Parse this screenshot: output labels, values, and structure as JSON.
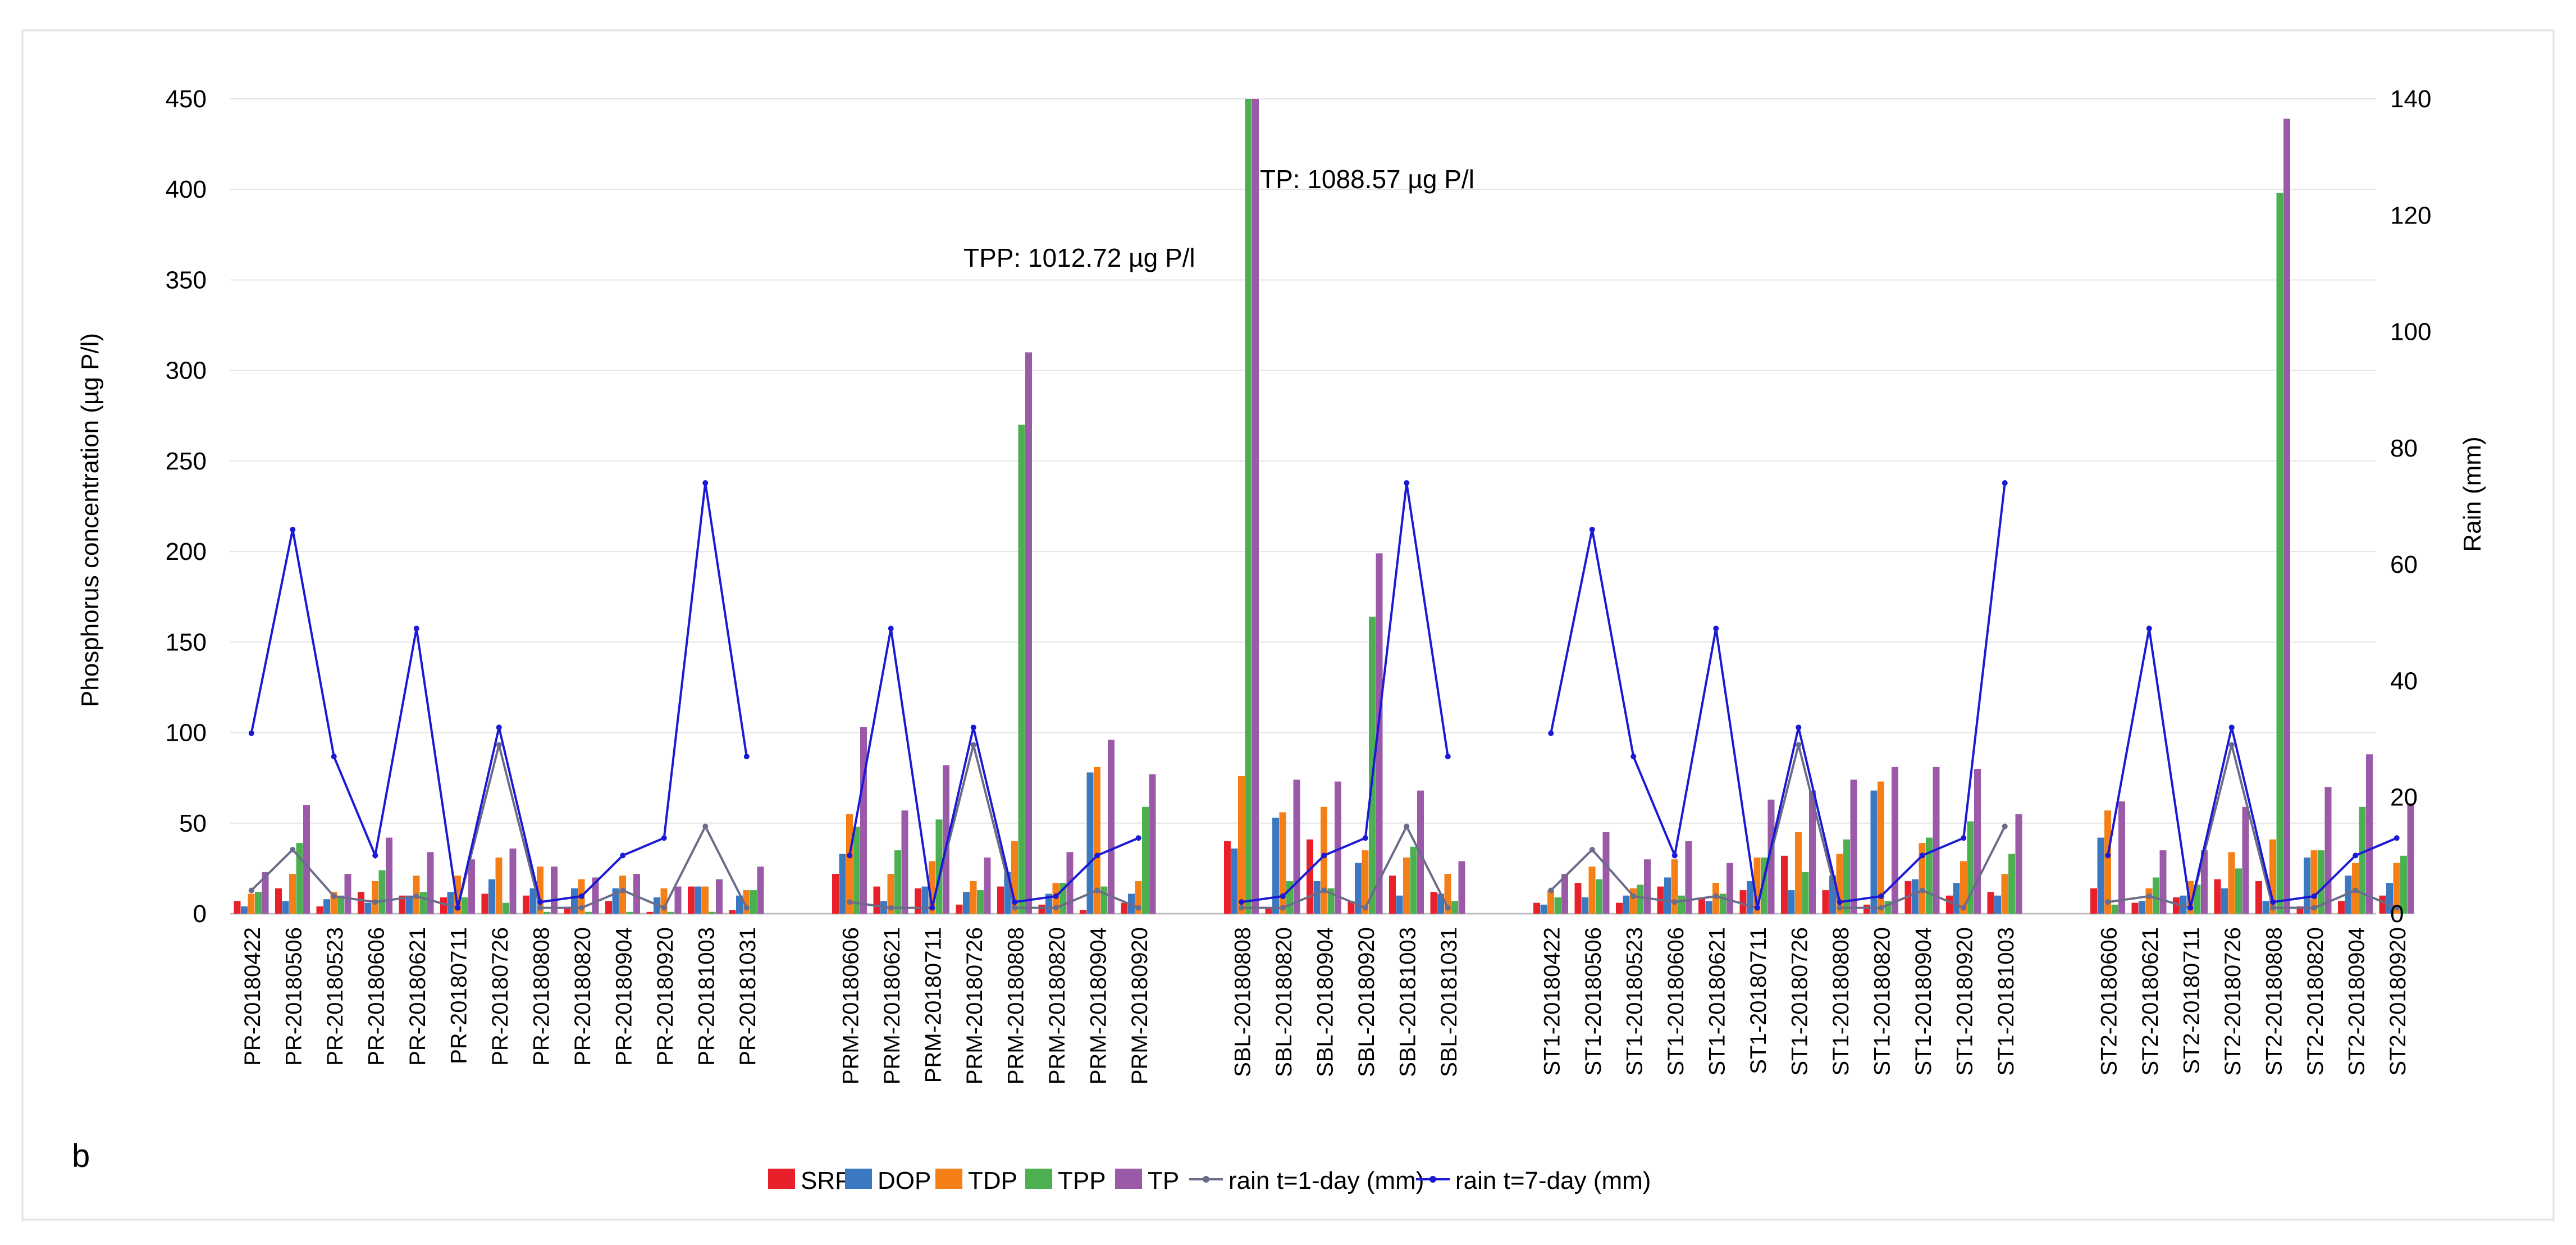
{
  "chart_data": {
    "type": "bar",
    "panel_label": "b",
    "ylabel": "Phosphorus  concentration (µg P/l)",
    "y2label": "Rain (mm)",
    "ylim": [
      0,
      450
    ],
    "yticks": [
      0,
      50,
      100,
      150,
      200,
      250,
      300,
      350,
      400,
      450
    ],
    "y2lim": [
      0,
      140
    ],
    "y2ticks": [
      0,
      20,
      40,
      60,
      80,
      100,
      120,
      140
    ],
    "grid": true,
    "legend_position": "bottom",
    "colors": {
      "SRP": "#e8202a",
      "DOP": "#3a78c2",
      "TDP": "#f57f17",
      "TPP": "#4caf50",
      "TP": "#9b5aa8",
      "rain1": "#6b6b8a",
      "rain7": "#1a1ad6"
    },
    "legend": [
      "SRP",
      "DOP",
      "TDP",
      "TPP",
      "TP",
      "rain t=1-day (mm)",
      "rain t=7-day (mm)"
    ],
    "annotations": [
      {
        "text": "TPP: 1012.72 µg P/l",
        "category": "SBL-20180808"
      },
      {
        "text": "TP: 1088.57 µg P/l",
        "category": "SBL-20180808"
      }
    ],
    "groups": [
      {
        "name": "PR",
        "categories": [
          "PR-20180422",
          "PR-20180506",
          "PR-20180523",
          "PR-20180606",
          "PR-20180621",
          "PR-20180711",
          "PR-20180726",
          "PR-20180808",
          "PR-20180820",
          "PR-20180904",
          "PR-20180920",
          "PR-20181003",
          "PR-20181031"
        ],
        "series": {
          "SRP": [
            7,
            14,
            4,
            12,
            10,
            9,
            11,
            10,
            3,
            7,
            1,
            15,
            2
          ],
          "DOP": [
            4,
            7,
            8,
            6,
            10,
            12,
            19,
            14,
            14,
            14,
            9,
            15,
            10
          ],
          "TDP": [
            11,
            22,
            12,
            18,
            21,
            21,
            31,
            26,
            19,
            21,
            14,
            15,
            13
          ],
          "TPP": [
            12,
            39,
            10,
            24,
            12,
            9,
            6,
            1,
            1,
            1,
            1,
            1,
            13
          ],
          "TP": [
            23,
            60,
            22,
            42,
            34,
            30,
            36,
            26,
            20,
            22,
            15,
            19,
            26
          ]
        },
        "rain1": [
          4,
          11,
          3,
          2,
          3,
          1,
          29,
          1,
          1,
          4,
          1,
          15,
          1
        ],
        "rain7": [
          31,
          66,
          27,
          10,
          49,
          1,
          32,
          2,
          3,
          10,
          13,
          74,
          27
        ]
      },
      {
        "name": "PRM",
        "categories": [
          "PRM-20180606",
          "PRM-20180621",
          "PRM-20180711",
          "PRM-20180726",
          "PRM-20180808",
          "PRM-20180820",
          "PRM-20180904",
          "PRM-20180920"
        ],
        "series": {
          "SRP": [
            22,
            15,
            14,
            5,
            15,
            5,
            2,
            6
          ],
          "DOP": [
            33,
            7,
            15,
            12,
            23,
            11,
            78,
            11
          ],
          "TDP": [
            55,
            22,
            29,
            18,
            40,
            17,
            81,
            18
          ],
          "TPP": [
            48,
            35,
            52,
            13,
            270,
            17,
            15,
            59
          ],
          "TP": [
            103,
            57,
            82,
            31,
            310,
            34,
            96,
            77
          ]
        },
        "rain1": [
          2,
          1,
          1,
          29,
          1,
          1,
          4,
          1
        ],
        "rain7": [
          10,
          49,
          1,
          32,
          2,
          3,
          10,
          13
        ]
      },
      {
        "name": "SBL",
        "categories": [
          "SBL-20180808",
          "SBL-20180820",
          "SBL-20180904",
          "SBL-20180920",
          "SBL-20181003",
          "SBL-20181031"
        ],
        "series": {
          "SRP": [
            40,
            3,
            41,
            7,
            21,
            12
          ],
          "DOP": [
            36,
            53,
            18,
            28,
            10,
            11
          ],
          "TDP": [
            76,
            56,
            59,
            35,
            31,
            22
          ],
          "TPP": [
            1012.72,
            18,
            14,
            164,
            37,
            7
          ],
          "TP": [
            1088.57,
            74,
            73,
            199,
            68,
            29
          ]
        },
        "rain1": [
          1,
          1,
          4,
          1,
          15,
          1
        ],
        "rain7": [
          2,
          3,
          10,
          13,
          74,
          27
        ]
      },
      {
        "name": "ST1",
        "categories": [
          "ST1-20180422",
          "ST1-20180506",
          "ST1-20180523",
          "ST1-20180606",
          "ST1-20180621",
          "ST1-20180711",
          "ST1-20180726",
          "ST1-20180808",
          "ST1-20180820",
          "ST1-20180904",
          "ST1-20180920",
          "ST1-20181003"
        ],
        "series": {
          "SRP": [
            6,
            17,
            6,
            15,
            9,
            13,
            32,
            13,
            5,
            18,
            10,
            12
          ],
          "DOP": [
            5,
            9,
            10,
            20,
            7,
            18,
            13,
            21,
            68,
            19,
            17,
            10
          ],
          "TDP": [
            13,
            26,
            14,
            30,
            17,
            31,
            45,
            33,
            73,
            39,
            29,
            22
          ],
          "TPP": [
            9,
            19,
            16,
            10,
            11,
            31,
            23,
            41,
            7,
            42,
            51,
            33
          ],
          "TP": [
            22,
            45,
            30,
            40,
            28,
            63,
            68,
            74,
            81,
            81,
            80,
            55
          ]
        },
        "rain1": [
          4,
          11,
          3,
          2,
          3,
          1,
          29,
          1,
          1,
          4,
          1,
          15
        ],
        "rain7": [
          31,
          66,
          27,
          10,
          49,
          1,
          32,
          2,
          3,
          10,
          13,
          74
        ]
      },
      {
        "name": "ST2",
        "categories": [
          "ST2-20180606",
          "ST2-20180621",
          "ST2-20180711",
          "ST2-20180726",
          "ST2-20180808",
          "ST2-20180820",
          "ST2-20180904",
          "ST2-20180920"
        ],
        "series": {
          "SRP": [
            14,
            6,
            9,
            19,
            18,
            4,
            7,
            10
          ],
          "DOP": [
            42,
            7,
            10,
            14,
            7,
            31,
            21,
            17
          ],
          "TDP": [
            57,
            14,
            18,
            34,
            41,
            35,
            28,
            28
          ],
          "TPP": [
            5,
            20,
            16,
            25,
            398,
            35,
            59,
            32
          ],
          "TP": [
            62,
            35,
            35,
            59,
            439,
            70,
            88,
            61
          ]
        },
        "rain1": [
          2,
          3,
          1,
          29,
          1,
          1,
          4,
          1
        ],
        "rain7": [
          10,
          49,
          1,
          32,
          2,
          3,
          10,
          13
        ]
      }
    ]
  }
}
